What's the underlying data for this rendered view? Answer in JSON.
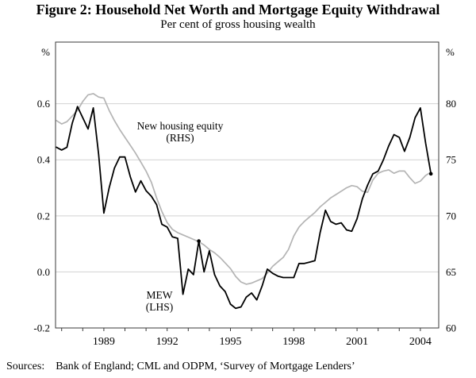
{
  "figure": {
    "title": "Figure 2: Household Net Worth and Mortgage Equity Withdrawal",
    "subtitle": "Per cent of gross housing wealth",
    "sources_label": "Sources:",
    "sources_text": "Bank of England; CML and ODPM, ‘Survey of Mortgage Lenders’"
  },
  "chart_data": {
    "type": "line",
    "title": "Figure 2: Household Net Worth and Mortgage Equity Withdrawal",
    "subtitle": "Per cent of gross housing wealth",
    "frequency": "quarterly",
    "x_start": 1986.75,
    "x_step": 0.25,
    "xlim": [
      1986.71,
      2004.87
    ],
    "grid": true,
    "x_axis": {
      "tick_year_first": 1987,
      "tick_year_last": 2004,
      "label_years": [
        "1989",
        "1992",
        "1995",
        "1998",
        "2001",
        "2004"
      ]
    },
    "left_axis": {
      "unit": "%",
      "tick_labels": [
        "0.6",
        "0.4",
        "0.2",
        "0.0",
        "-0.2"
      ],
      "tick_values": [
        0.6,
        0.4,
        0.2,
        0.0,
        -0.2
      ],
      "gridline_values": [
        0.6,
        0.4,
        0.2,
        0.0
      ],
      "lim": [
        -0.2,
        0.82
      ]
    },
    "right_axis": {
      "unit": "%",
      "tick_labels": [
        "80",
        "75",
        "70",
        "65",
        "60"
      ],
      "tick_values": [
        80,
        75,
        70,
        65,
        60
      ],
      "lim": [
        60,
        85.5
      ]
    },
    "series": [
      {
        "name": "New housing equity",
        "axis": "right",
        "color": "#b4b4b4",
        "width": 1.7,
        "marker_indices": [],
        "values": [
          78.5,
          78.2,
          78.4,
          78.9,
          79.4,
          80.2,
          80.8,
          80.9,
          80.6,
          80.5,
          79.4,
          78.5,
          77.7,
          77.0,
          76.3,
          75.6,
          74.8,
          74.0,
          73.0,
          71.6,
          70.4,
          69.4,
          68.8,
          68.5,
          68.3,
          68.1,
          67.9,
          67.7,
          67.4,
          67.0,
          66.7,
          66.3,
          65.8,
          65.3,
          64.6,
          64.1,
          63.9,
          64.0,
          64.2,
          64.4,
          64.9,
          65.5,
          65.9,
          66.3,
          67.0,
          68.2,
          69.0,
          69.5,
          69.9,
          70.3,
          70.8,
          71.2,
          71.6,
          71.9,
          72.2,
          72.5,
          72.7,
          72.6,
          72.2,
          72.1,
          73.2,
          73.8,
          74.0,
          74.1,
          73.8,
          74.0,
          74.0,
          73.4,
          72.9,
          73.1,
          73.6,
          73.9
        ]
      },
      {
        "name": "MEW",
        "axis": "left",
        "color": "#000000",
        "width": 1.8,
        "marker_indices": [
          27,
          71
        ],
        "values": [
          0.445,
          0.435,
          0.445,
          0.53,
          0.59,
          0.55,
          0.51,
          0.585,
          0.42,
          0.21,
          0.3,
          0.37,
          0.41,
          0.41,
          0.34,
          0.285,
          0.325,
          0.29,
          0.27,
          0.24,
          0.17,
          0.16,
          0.125,
          0.12,
          -0.08,
          0.01,
          -0.01,
          0.11,
          0.0,
          0.075,
          -0.01,
          -0.05,
          -0.07,
          -0.115,
          -0.13,
          -0.125,
          -0.09,
          -0.075,
          -0.1,
          -0.05,
          0.01,
          -0.005,
          -0.015,
          -0.02,
          -0.02,
          -0.02,
          0.03,
          0.03,
          0.035,
          0.04,
          0.14,
          0.22,
          0.18,
          0.17,
          0.175,
          0.15,
          0.145,
          0.19,
          0.26,
          0.31,
          0.35,
          0.36,
          0.4,
          0.45,
          0.49,
          0.48,
          0.43,
          0.48,
          0.55,
          0.585,
          0.46,
          0.35
        ]
      }
    ],
    "annotations": [
      {
        "id": "nhe-label",
        "text_lines": [
          "New housing equity",
          "(RHS)"
        ]
      },
      {
        "id": "mew-label",
        "text_lines": [
          "MEW",
          "(LHS)"
        ]
      }
    ],
    "colors": {
      "gridline": "#d2d2d2",
      "frame": "#3a3a3a",
      "tick": "#3a3a3a",
      "text": "#000000"
    }
  }
}
